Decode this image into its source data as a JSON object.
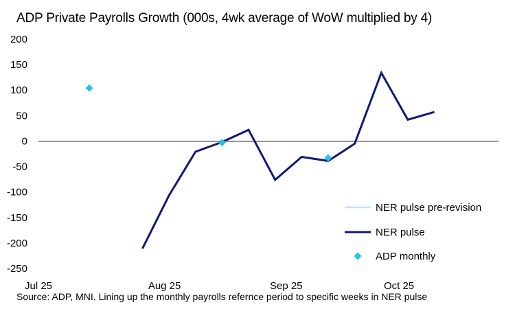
{
  "chart_data": {
    "type": "line",
    "title": "ADP Private Payrolls Growth (000s, 4wk average of WoW multiplied by 4)",
    "xlabel": "",
    "ylabel": "",
    "ylim": [
      -250,
      200
    ],
    "yticks": [
      200,
      150,
      100,
      50,
      0,
      -50,
      -100,
      -150,
      -200,
      -250
    ],
    "xlim": [
      0,
      20.8
    ],
    "xticks": [
      {
        "label": "Jul 25",
        "pos": 0
      },
      {
        "label": "Aug 25",
        "pos": 5.7
      },
      {
        "label": "Sep 25",
        "pos": 11.2
      },
      {
        "label": "Oct 25",
        "pos": 16.3
      }
    ],
    "grid": false,
    "legend_position": "bottom-right",
    "series": [
      {
        "name": "NER pulse pre-revision",
        "style": "line",
        "color": "#bfe6f7",
        "x": [],
        "y": []
      },
      {
        "name": "NER pulse",
        "style": "line",
        "color": "#0f1a74",
        "x": [
          4.7,
          5.9,
          7.1,
          8.3,
          9.5,
          10.7,
          11.9,
          13.1,
          14.3,
          15.5,
          16.7,
          17.9
        ],
        "y": [
          -211,
          -107,
          -21,
          -2,
          22,
          -76,
          -31,
          -39,
          -5,
          134,
          42,
          57
        ]
      },
      {
        "name": "ADP monthly",
        "style": "marker",
        "color": "#22c2ea",
        "x": [
          2.3,
          8.3,
          13.1
        ],
        "y": [
          104,
          -3,
          -33
        ]
      }
    ],
    "source": "Source: ADP, MNI. Lining up the monthly payrolls refernce period to specific weeks in NER pulse"
  }
}
